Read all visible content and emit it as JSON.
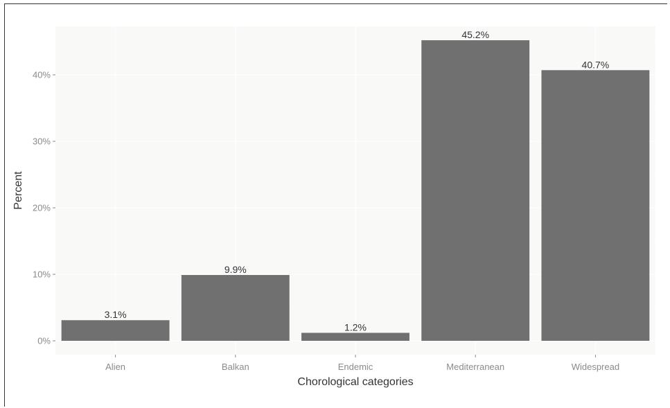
{
  "chart_data": {
    "type": "bar",
    "categories": [
      "Alien",
      "Balkan",
      "Endemic",
      "Mediterranean",
      "Widespread"
    ],
    "values": [
      3.1,
      9.9,
      1.2,
      45.2,
      40.7
    ],
    "data_labels": [
      "3.1%",
      "9.9%",
      "1.2%",
      "45.2%",
      "40.7%"
    ],
    "xlabel": "Chorological categories",
    "ylabel": "Percent",
    "ylim": [
      0,
      47.5
    ],
    "yticks": [
      0,
      10,
      20,
      30,
      40
    ],
    "ytick_labels": [
      "0%",
      "10%",
      "20%",
      "30%",
      "40%"
    ],
    "grid": true,
    "legend": "none",
    "colors": {
      "bar": "#717070",
      "panel_background": "#f9f9f8",
      "grid_major": "#ffffff",
      "grid_minor": "#fcfcfb"
    }
  }
}
